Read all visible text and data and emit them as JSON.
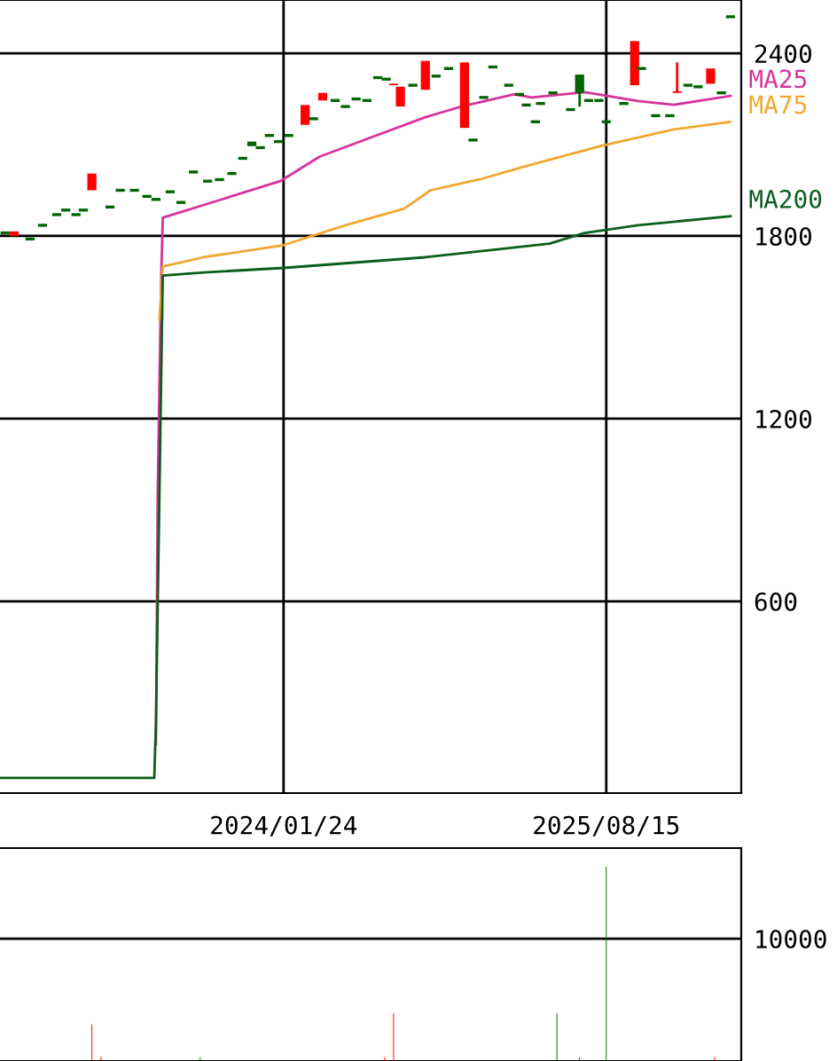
{
  "chart_data": [
    {
      "type": "candlestick",
      "xlim": [
        "2022-09-11",
        "2026-04-10"
      ],
      "xticks": [
        {
          "value": "2024-01-24",
          "label": "2024/01/24"
        },
        {
          "value": "2025-08-15",
          "label": "2025/08/15"
        }
      ],
      "ylim": [
        -30,
        2575
      ],
      "yticks": [
        600,
        1200,
        1800,
        2400
      ],
      "grid": true,
      "x": [
        "2022-09-20",
        "2022-10-06",
        "2022-11-03",
        "2022-11-25",
        "2022-12-20",
        "2023-01-05",
        "2023-01-23",
        "2023-02-05",
        "2023-02-20",
        "2023-03-24",
        "2023-04-11",
        "2023-05-06",
        "2023-05-28",
        "2023-06-13",
        "2023-07-08",
        "2023-07-27",
        "2023-08-18",
        "2023-09-12",
        "2023-10-03",
        "2023-10-25",
        "2023-11-13",
        "2023-11-29",
        "2023-12-14",
        "2023-12-30",
        "2024-01-15",
        "2024-02-02",
        "2024-03-02",
        "2024-03-17",
        "2024-04-02",
        "2024-04-24",
        "2024-05-12",
        "2024-05-31",
        "2024-06-19",
        "2024-07-08",
        "2024-07-23",
        "2024-08-05",
        "2024-08-17",
        "2024-09-08",
        "2024-09-30",
        "2024-10-19",
        "2024-11-10",
        "2024-12-08",
        "2024-12-23",
        "2025-01-11",
        "2025-01-27",
        "2025-02-24",
        "2025-03-15",
        "2025-03-27",
        "2025-04-12",
        "2025-04-21",
        "2025-05-13",
        "2025-06-13",
        "2025-06-29",
        "2025-07-15",
        "2025-08-02",
        "2025-08-15",
        "2025-09-15",
        "2025-10-04",
        "2025-10-16",
        "2025-11-10",
        "2025-12-05",
        "2025-12-18",
        "2026-01-06",
        "2026-01-24",
        "2026-02-15",
        "2026-03-06",
        "2026-03-22"
      ],
      "ohlc": [
        [
          1810,
          1810,
          1810,
          1810
        ],
        [
          1800,
          1815,
          1800,
          1815
        ],
        [
          1790,
          1790,
          1790,
          1790
        ],
        [
          1835,
          1835,
          1835,
          1835
        ],
        [
          1870,
          1870,
          1870,
          1870
        ],
        [
          1885,
          1885,
          1885,
          1885
        ],
        [
          1870,
          1870,
          1870,
          1870
        ],
        [
          1885,
          1885,
          1885,
          1885
        ],
        [
          1950,
          2005,
          1950,
          2005
        ],
        [
          1895,
          1895,
          1895,
          1895
        ],
        [
          1950,
          1950,
          1950,
          1950
        ],
        [
          1950,
          1950,
          1950,
          1950
        ],
        [
          1930,
          1930,
          1930,
          1930
        ],
        [
          1920,
          1920,
          1920,
          1920
        ],
        [
          1945,
          1945,
          1945,
          1945
        ],
        [
          1910,
          1910,
          1910,
          1910
        ],
        [
          2010,
          2010,
          2010,
          2010
        ],
        [
          1980,
          1980,
          1980,
          1980
        ],
        [
          1985,
          1985,
          1985,
          1985
        ],
        [
          2005,
          2005,
          2005,
          2005
        ],
        [
          2055,
          2055,
          2055,
          2055
        ],
        [
          2110,
          2110,
          2095,
          2095
        ],
        [
          2090,
          2090,
          2090,
          2090
        ],
        [
          2130,
          2130,
          2130,
          2130
        ],
        [
          2110,
          2110,
          2110,
          2110
        ],
        [
          2130,
          2130,
          2130,
          2130
        ],
        [
          2165,
          2230,
          2165,
          2230
        ],
        [
          2185,
          2185,
          2185,
          2185
        ],
        [
          2245,
          2270,
          2245,
          2270
        ],
        [
          2245,
          2245,
          2245,
          2245
        ],
        [
          2225,
          2225,
          2225,
          2225
        ],
        [
          2250,
          2250,
          2250,
          2250
        ],
        [
          2245,
          2245,
          2245,
          2245
        ],
        [
          2320,
          2320,
          2320,
          2320
        ],
        [
          2315,
          2315,
          2315,
          2315
        ],
        [
          2295,
          2300,
          2295,
          2300
        ],
        [
          2225,
          2290,
          2225,
          2290
        ],
        [
          2295,
          2295,
          2295,
          2295
        ],
        [
          2280,
          2375,
          2280,
          2375
        ],
        [
          2325,
          2325,
          2325,
          2325
        ],
        [
          2350,
          2350,
          2350,
          2350
        ],
        [
          2155,
          2370,
          2155,
          2370
        ],
        [
          2115,
          2115,
          2115,
          2115
        ],
        [
          2255,
          2255,
          2255,
          2255
        ],
        [
          2355,
          2355,
          2355,
          2355
        ],
        [
          2295,
          2295,
          2295,
          2295
        ],
        [
          2265,
          2265,
          2265,
          2265
        ],
        [
          2230,
          2230,
          2230,
          2230
        ],
        [
          2175,
          2175,
          2175,
          2175
        ],
        [
          2235,
          2235,
          2235,
          2235
        ],
        [
          2270,
          2270,
          2270,
          2270
        ],
        [
          2215,
          2215,
          2215,
          2215
        ],
        [
          2330,
          2330,
          2225,
          2270
        ],
        [
          2245,
          2245,
          2245,
          2245
        ],
        [
          2245,
          2245,
          2245,
          2245
        ],
        [
          2175,
          2175,
          2175,
          2175
        ],
        [
          2235,
          2235,
          2235,
          2235
        ],
        [
          2295,
          2440,
          2295,
          2440
        ],
        [
          2350,
          2350,
          2350,
          2350
        ],
        [
          2195,
          2195,
          2195,
          2195
        ],
        [
          2195,
          2195,
          2195,
          2195
        ],
        [
          2270,
          2370,
          2270,
          2275
        ],
        [
          2295,
          2295,
          2295,
          2295
        ],
        [
          2290,
          2290,
          2290,
          2290
        ],
        [
          2300,
          2350,
          2300,
          2350
        ],
        [
          2270,
          2270,
          2270,
          2270
        ],
        [
          2520,
          2520,
          2520,
          2520
        ]
      ],
      "colors": [
        "#006400",
        "#ff0000",
        "#006400",
        "#006400",
        "#006400",
        "#006400",
        "#006400",
        "#006400",
        "#ff0000",
        "#006400",
        "#006400",
        "#006400",
        "#006400",
        "#006400",
        "#006400",
        "#006400",
        "#006400",
        "#006400",
        "#006400",
        "#006400",
        "#006400",
        "#006400",
        "#006400",
        "#006400",
        "#006400",
        "#006400",
        "#ff0000",
        "#006400",
        "#ff0000",
        "#006400",
        "#006400",
        "#006400",
        "#006400",
        "#006400",
        "#006400",
        "#ff0000",
        "#ff0000",
        "#006400",
        "#ff0000",
        "#006400",
        "#006400",
        "#ff0000",
        "#006400",
        "#006400",
        "#006400",
        "#006400",
        "#006400",
        "#006400",
        "#006400",
        "#006400",
        "#006400",
        "#006400",
        "#006400",
        "#006400",
        "#006400",
        "#006400",
        "#006400",
        "#ff0000",
        "#006400",
        "#006400",
        "#006400",
        "#ff0000",
        "#006400",
        "#006400",
        "#ff0000",
        "#006400",
        "#006400"
      ],
      "series": [
        {
          "name": "MA25",
          "type": "line",
          "color": "#d6349b",
          "x": [
            "2023-06-13",
            "2023-06-16",
            "2023-06-19",
            "2023-06-22",
            "2023-06-25",
            "2023-10-07",
            "2024-01-18",
            "2024-03-27",
            "2024-06-28",
            "2024-09-30",
            "2024-12-02",
            "2025-03-05",
            "2025-04-06",
            "2025-07-08",
            "2025-10-10",
            "2025-12-12",
            "2026-02-12",
            "2026-03-22"
          ],
          "values": [
            130,
            945,
            1305,
            1645,
            1860,
            1920,
            1980,
            2060,
            2125,
            2190,
            2225,
            2265,
            2255,
            2272,
            2243,
            2231,
            2249,
            2260
          ]
        },
        {
          "name": "MA75",
          "type": "line",
          "color": "#f0a830",
          "x": [
            "2023-06-19",
            "2023-06-25",
            "2023-09-05",
            "2024-01-24",
            "2024-05-12",
            "2024-08-24",
            "2024-10-09",
            "2025-01-02",
            "2025-04-06",
            "2025-08-08",
            "2025-12-12",
            "2026-03-22"
          ],
          "values": [
            1525,
            1700,
            1730,
            1770,
            1835,
            1890,
            1950,
            1985,
            2035,
            2097,
            2150,
            2175
          ]
        },
        {
          "name": "MA200",
          "type": "line",
          "color": "#0b5e1b",
          "x": [
            "2022-09-11",
            "2023-06-10",
            "2023-06-13",
            "2023-06-25",
            "2023-09-05",
            "2024-01-24",
            "2024-09-30",
            "2025-05-07",
            "2025-07-08",
            "2025-10-10",
            "2026-03-22"
          ],
          "values": [
            20,
            20,
            200,
            1670,
            1680,
            1695,
            1730,
            1775,
            1810,
            1835,
            1865
          ]
        }
      ]
    },
    {
      "type": "bar",
      "xlim": [
        "2022-09-11",
        "2026-04-10"
      ],
      "ylim": [
        0,
        17400
      ],
      "yticks": [
        10000
      ],
      "grid": "y",
      "tick_labels": "y",
      "x": [
        "2023-02-20",
        "2023-03-08",
        "2023-08-30",
        "2024-07-20",
        "2024-08-05",
        "2025-05-20",
        "2025-06-29",
        "2025-08-15",
        "2026-02-22"
      ],
      "values": [
        3000,
        300,
        300,
        300,
        3900,
        3900,
        300,
        15900,
        300
      ],
      "colors": [
        "#ff0000",
        "#ff0000",
        "#006400",
        "#ff0000",
        "#ff0000",
        "#006400",
        "#006400",
        "#006400",
        "#ff0000"
      ]
    }
  ]
}
